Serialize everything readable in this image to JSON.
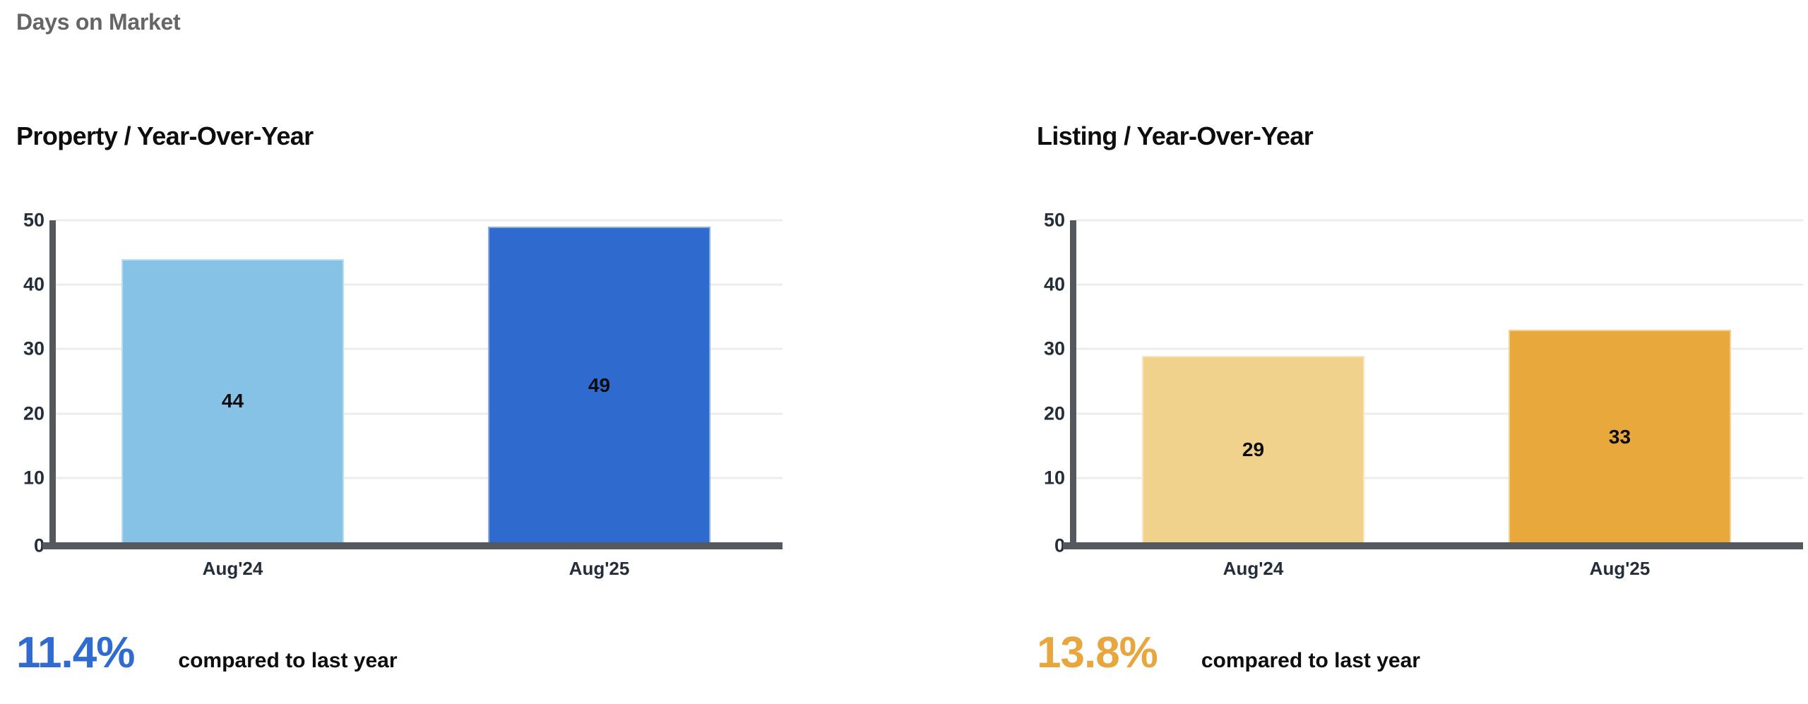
{
  "header": {
    "title": "Days on Market"
  },
  "colors": {
    "axis": "#55595e",
    "grid": "#ececec",
    "tick_label": "#242e3b",
    "chart_title": "#0e0e0e",
    "page_title": "#656565"
  },
  "chart_data": [
    {
      "type": "bar",
      "title": "Property / Year-Over-Year",
      "categories": [
        "Aug'24",
        "Aug'25"
      ],
      "values": [
        44,
        49
      ],
      "value_labels": [
        "44",
        "49"
      ],
      "bar_colors": [
        "#85c2e5",
        "#2f6bce"
      ],
      "ylim": [
        0,
        50
      ],
      "yticks": [
        50,
        40,
        30,
        20,
        10,
        0
      ],
      "grid": true,
      "legend_position": "none",
      "xlabel": "",
      "ylabel": "",
      "stat": {
        "value": "11.4%",
        "note": "compared to last year",
        "color": "#2f6bd1"
      }
    },
    {
      "type": "bar",
      "title": "Listing / Year-Over-Year",
      "categories": [
        "Aug'24",
        "Aug'25"
      ],
      "values": [
        29,
        33
      ],
      "value_labels": [
        "29",
        "33"
      ],
      "bar_colors": [
        "#f0d28c",
        "#e9a83c"
      ],
      "ylim": [
        0,
        50
      ],
      "yticks": [
        50,
        40,
        30,
        20,
        10,
        0
      ],
      "grid": true,
      "legend_position": "none",
      "xlabel": "",
      "ylabel": "",
      "stat": {
        "value": "13.8%",
        "note": "compared to last year",
        "color": "#e8a73e"
      }
    }
  ]
}
